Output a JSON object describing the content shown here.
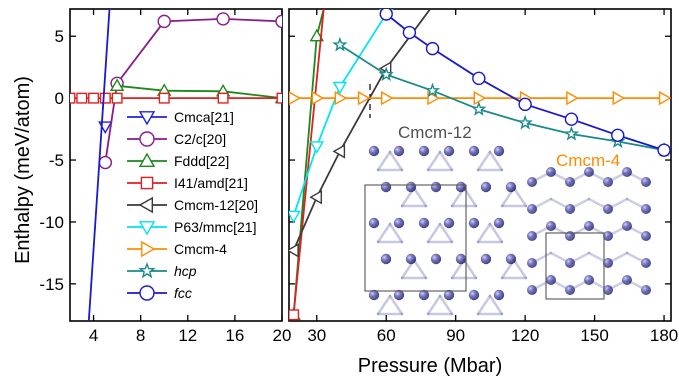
{
  "chart_data": [
    {
      "type": "line",
      "panel": "left",
      "xlabel": "",
      "ylabel": "Enthalpy (meV/atom)",
      "xlim": [
        2,
        20
      ],
      "ylim": [
        -18,
        7.2
      ],
      "xticks": [
        "4",
        "8",
        "12",
        "16",
        "20"
      ],
      "yticks": [
        "5",
        "0",
        "-5",
        "-10",
        "-15"
      ],
      "series": [
        {
          "name": "Cmca[21]",
          "color": "#2020e0",
          "marker": "triangle-down",
          "x": [
            5
          ],
          "y": [
            -2.3
          ],
          "line": false
        },
        {
          "name": "C2/c[20]",
          "color": "#8b1a8b",
          "marker": "circle",
          "x": [
            5,
            6,
            10,
            15,
            20
          ],
          "y": [
            -5.2,
            1.2,
            6.2,
            6.4,
            6.2
          ],
          "line": true
        },
        {
          "name": "Fddd[22]",
          "color": "#1a8a1a",
          "marker": "triangle-up",
          "x": [
            6,
            10,
            15,
            20
          ],
          "y": [
            1.0,
            0.6,
            0.55,
            0.0
          ],
          "line": true
        },
        {
          "name": "I41/amd[21]",
          "color": "#e02020",
          "marker": "square",
          "x": [
            2,
            3,
            4,
            5,
            6,
            10,
            15,
            20
          ],
          "y": [
            0,
            0,
            0,
            0,
            0,
            0,
            0,
            0
          ],
          "line": true
        },
        {
          "name": "fcc",
          "color": "#1a1acd",
          "marker": "none",
          "x": [
            3.6,
            5.35
          ],
          "y": [
            -18,
            7.2
          ],
          "line": true
        }
      ]
    },
    {
      "type": "line",
      "panel": "right",
      "xlabel": "Pressure (Mbar)",
      "ylabel": "",
      "xlim": [
        18,
        183
      ],
      "ylim": [
        -18,
        7.2
      ],
      "xticks": [
        "30",
        "60",
        "90",
        "120",
        "150",
        "180"
      ],
      "series": [
        {
          "name": "Fddd[22]",
          "color": "#1a8a1a",
          "marker": "triangle-up",
          "x": [
            20,
            30,
            33
          ],
          "y": [
            -17.5,
            5.0,
            7.2
          ],
          "line": true
        },
        {
          "name": "I41/amd[21]",
          "color": "#e02020",
          "marker": "square",
          "x": [
            20,
            33
          ],
          "y": [
            -17.5,
            7.2
          ],
          "line": true
        },
        {
          "name": "Cmcm-12[20]",
          "color": "#3a3a3a",
          "marker": "triangle-left",
          "x": [
            20,
            30,
            40,
            60,
            79
          ],
          "y": [
            -12.3,
            -8.0,
            -4.3,
            2.4,
            7.2
          ],
          "line": true
        },
        {
          "name": "P63/mmc[21]",
          "color": "#00e5ee",
          "marker": "triangle-down",
          "x": [
            20,
            30,
            40,
            60,
            61
          ],
          "y": [
            -9.5,
            -3.9,
            0.9,
            6.8,
            7.2
          ],
          "line": true
        },
        {
          "name": "Cmcm-4",
          "color": "#ff8c00",
          "marker": "triangle-right",
          "x": [
            20,
            30,
            40,
            50,
            60,
            80,
            100,
            120,
            140,
            160,
            180
          ],
          "y": [
            0,
            0,
            0,
            0,
            0,
            0,
            0,
            0,
            0,
            0,
            0
          ],
          "line": true
        },
        {
          "name": "hcp",
          "color": "#1a8a8a",
          "marker": "star",
          "x": [
            40,
            60,
            80,
            100,
            120,
            140,
            160,
            180
          ],
          "y": [
            4.3,
            1.9,
            0.6,
            -0.9,
            -2.0,
            -2.9,
            -3.5,
            -4.2
          ],
          "line": true
        },
        {
          "name": "fcc",
          "color": "#1a1acd",
          "marker": "circle",
          "x": [
            60,
            70,
            80,
            100,
            120,
            140,
            160,
            180
          ],
          "y": [
            6.8,
            5.3,
            4.0,
            1.6,
            -0.5,
            -1.7,
            -3.0,
            -4.2
          ],
          "line": true
        }
      ]
    }
  ],
  "legend": [
    {
      "label": "Cmca[21]",
      "color": "#2020e0",
      "marker": "triangle-down",
      "italic": false
    },
    {
      "label": "C2/c[20]",
      "color": "#8b1a8b",
      "marker": "circle",
      "italic": false
    },
    {
      "label": "Fddd[22]",
      "color": "#1a8a1a",
      "marker": "triangle-up",
      "italic": false
    },
    {
      "label": "I41/amd[21]",
      "color": "#e02020",
      "marker": "square",
      "italic": false
    },
    {
      "label": "Cmcm-12[20]",
      "color": "#3a3a3a",
      "marker": "triangle-left",
      "italic": false
    },
    {
      "label": "P63/mmc[21]",
      "color": "#00e5ee",
      "marker": "triangle-down",
      "italic": false
    },
    {
      "label": "Cmcm-4",
      "color": "#ff8c00",
      "marker": "triangle-right",
      "italic": false
    },
    {
      "label": "hcp",
      "color": "#1a8a8a",
      "marker": "star",
      "italic": true
    },
    {
      "label": "fcc",
      "color": "#1a1acd",
      "marker": "circle",
      "italic": true
    }
  ],
  "annotations": {
    "cmcm12_label": "Cmcm-12",
    "cmcm12_color": "#505050",
    "cmcm4_label": "Cmcm-4",
    "cmcm4_color": "#ff8c00",
    "atom_color": "#3d3d99"
  }
}
